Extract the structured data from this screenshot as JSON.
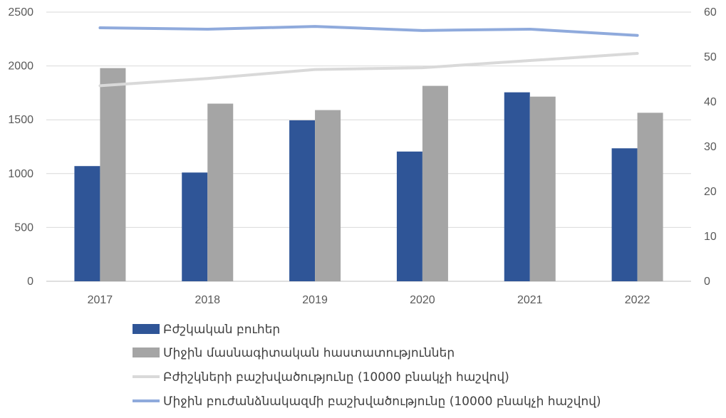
{
  "chart_data": {
    "type": "bar",
    "categories": [
      "2017",
      "2018",
      "2019",
      "2020",
      "2021",
      "2022"
    ],
    "y_left": {
      "ticks": [
        "0",
        "500",
        "1000",
        "1500",
        "2000",
        "2500"
      ],
      "lim": [
        0,
        2500
      ]
    },
    "y_right": {
      "ticks": [
        "0",
        "10",
        "20",
        "30",
        "40",
        "50",
        "60"
      ],
      "lim": [
        0,
        60
      ]
    },
    "grid": true,
    "legend_position": "bottom",
    "series": [
      {
        "name": "Բժշկական բուհեր",
        "kind": "bar",
        "axis": "left",
        "color": "#2f5597",
        "values": [
          1070,
          1010,
          1495,
          1205,
          1755,
          1235
        ]
      },
      {
        "name": "Միջին մասնագիտական հաստատություններ",
        "kind": "bar",
        "axis": "left",
        "color": "#a5a5a5",
        "values": [
          1980,
          1650,
          1590,
          1815,
          1715,
          1565
        ]
      },
      {
        "name": "Բժիշկների բաշխվածությունը (10000 բնակչի հաշվով)",
        "kind": "line",
        "axis": "right",
        "color": "#d9d9d9",
        "values": [
          43.6,
          45.2,
          47.2,
          47.6,
          49.2,
          50.8
        ]
      },
      {
        "name": "Միջին բուժանձնակազմի բաշխվածությունը (10000 բնակչի հաշվով)",
        "kind": "line",
        "axis": "right",
        "color": "#8faadc",
        "values": [
          56.5,
          56.2,
          56.8,
          55.9,
          56.2,
          54.8
        ]
      }
    ]
  }
}
